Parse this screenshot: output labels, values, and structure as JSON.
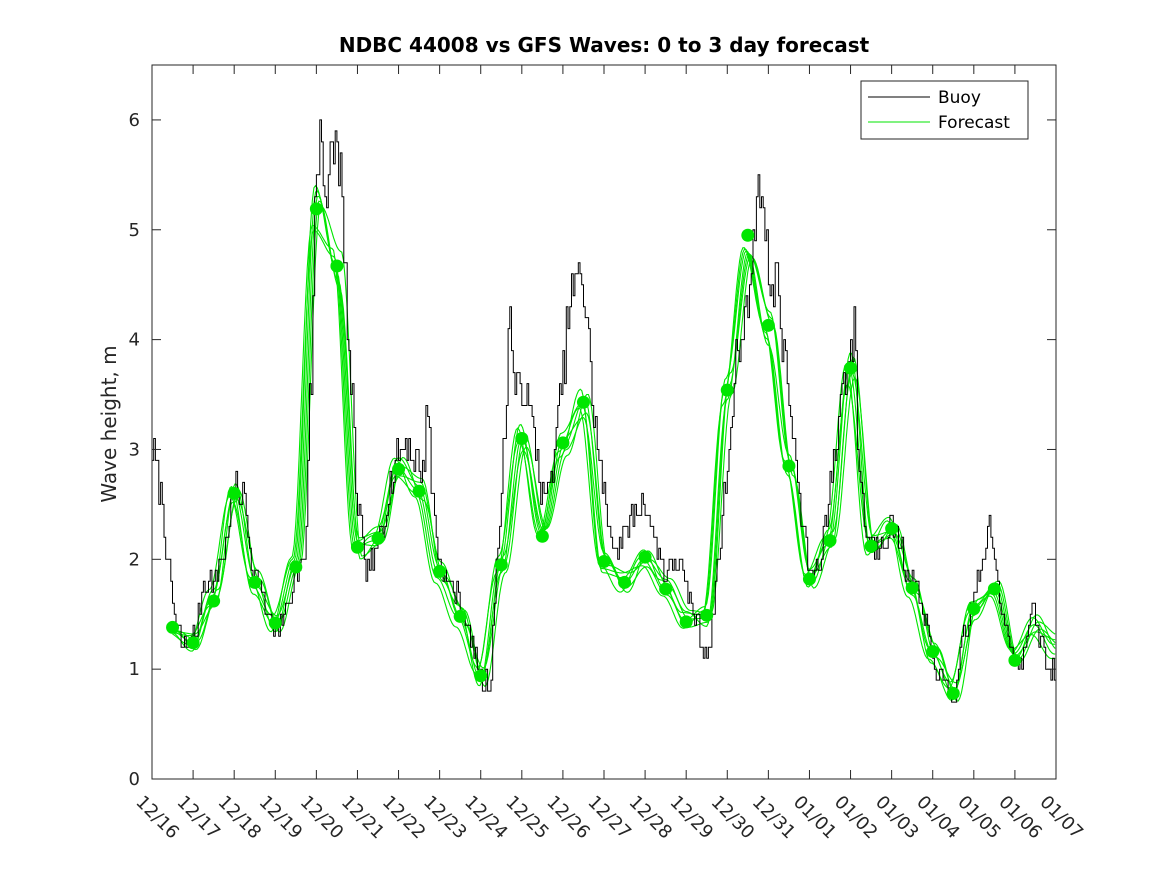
{
  "chart_data": {
    "type": "line",
    "title": "NDBC 44008 vs GFS Waves: 0 to 3 day forecast",
    "xlabel": "",
    "ylabel": "Wave height, m",
    "xlim": [
      0,
      22
    ],
    "ylim": [
      0,
      6.5
    ],
    "yticks": [
      0,
      1,
      2,
      3,
      4,
      5,
      6
    ],
    "ytick_labels": [
      "0",
      "1",
      "2",
      "3",
      "4",
      "5",
      "6"
    ],
    "xtick_labels": [
      "12/16",
      "12/17",
      "12/18",
      "12/19",
      "12/20",
      "12/21",
      "12/22",
      "12/23",
      "12/24",
      "12/25",
      "12/26",
      "12/27",
      "12/28",
      "12/29",
      "12/30",
      "12/31",
      "01/01",
      "01/02",
      "01/03",
      "01/04",
      "01/05",
      "01/06",
      "01/07"
    ],
    "legend": {
      "location": "top-right",
      "entries": [
        "Buoy",
        "Forecast"
      ]
    },
    "colors": {
      "buoy": "#000000",
      "forecast": "#00e600"
    },
    "buoy_anchors": [
      [
        0.0,
        3.0
      ],
      [
        0.2,
        2.6
      ],
      [
        0.4,
        1.9
      ],
      [
        0.6,
        1.4
      ],
      [
        0.75,
        1.2
      ],
      [
        1.0,
        1.3
      ],
      [
        1.3,
        1.8
      ],
      [
        1.5,
        1.8
      ],
      [
        1.7,
        2.0
      ],
      [
        2.0,
        2.6
      ],
      [
        2.2,
        2.6
      ],
      [
        2.5,
        1.9
      ],
      [
        2.8,
        1.5
      ],
      [
        3.0,
        1.3
      ],
      [
        3.2,
        1.5
      ],
      [
        3.5,
        1.8
      ],
      [
        3.7,
        2.0
      ],
      [
        3.85,
        3.5
      ],
      [
        4.0,
        5.5
      ],
      [
        4.1,
        6.0
      ],
      [
        4.25,
        5.2
      ],
      [
        4.35,
        5.6
      ],
      [
        4.45,
        5.8
      ],
      [
        4.55,
        5.7
      ],
      [
        4.7,
        4.5
      ],
      [
        4.85,
        3.5
      ],
      [
        5.0,
        2.5
      ],
      [
        5.2,
        1.9
      ],
      [
        5.4,
        2.0
      ],
      [
        5.6,
        2.3
      ],
      [
        5.8,
        2.7
      ],
      [
        6.0,
        3.0
      ],
      [
        6.2,
        3.1
      ],
      [
        6.4,
        2.9
      ],
      [
        6.6,
        2.8
      ],
      [
        6.7,
        3.5
      ],
      [
        6.8,
        2.6
      ],
      [
        7.0,
        2.0
      ],
      [
        7.2,
        1.8
      ],
      [
        7.4,
        1.7
      ],
      [
        7.6,
        1.5
      ],
      [
        7.8,
        1.2
      ],
      [
        8.0,
        0.9
      ],
      [
        8.2,
        0.85
      ],
      [
        8.4,
        2.0
      ],
      [
        8.55,
        3.0
      ],
      [
        8.7,
        4.2
      ],
      [
        8.85,
        3.5
      ],
      [
        9.0,
        3.6
      ],
      [
        9.2,
        3.3
      ],
      [
        9.35,
        3.0
      ],
      [
        9.5,
        2.6
      ],
      [
        9.65,
        2.6
      ],
      [
        9.8,
        3.0
      ],
      [
        10.0,
        3.7
      ],
      [
        10.15,
        4.3
      ],
      [
        10.3,
        4.5
      ],
      [
        10.45,
        4.6
      ],
      [
        10.55,
        4.3
      ],
      [
        10.75,
        3.3
      ],
      [
        10.9,
        2.8
      ],
      [
        11.1,
        2.3
      ],
      [
        11.3,
        2.1
      ],
      [
        11.5,
        2.2
      ],
      [
        11.7,
        2.4
      ],
      [
        12.0,
        2.5
      ],
      [
        12.2,
        2.2
      ],
      [
        12.5,
        1.9
      ],
      [
        12.8,
        2.0
      ],
      [
        13.0,
        1.7
      ],
      [
        13.2,
        1.5
      ],
      [
        13.4,
        1.2
      ],
      [
        13.55,
        1.2
      ],
      [
        13.75,
        1.9
      ],
      [
        14.0,
        2.8
      ],
      [
        14.2,
        3.8
      ],
      [
        14.4,
        4.1
      ],
      [
        14.6,
        4.7
      ],
      [
        14.75,
        5.6
      ],
      [
        14.85,
        5.2
      ],
      [
        15.0,
        4.6
      ],
      [
        15.2,
        4.5
      ],
      [
        15.4,
        3.8
      ],
      [
        15.6,
        3.1
      ],
      [
        15.8,
        2.4
      ],
      [
        16.0,
        1.9
      ],
      [
        16.2,
        1.9
      ],
      [
        16.4,
        2.4
      ],
      [
        16.6,
        2.9
      ],
      [
        16.8,
        3.6
      ],
      [
        17.0,
        3.9
      ],
      [
        17.1,
        4.1
      ],
      [
        17.2,
        2.8
      ],
      [
        17.4,
        2.2
      ],
      [
        17.6,
        2.1
      ],
      [
        17.8,
        2.2
      ],
      [
        18.0,
        2.3
      ],
      [
        18.2,
        2.2
      ],
      [
        18.4,
        1.8
      ],
      [
        18.6,
        1.7
      ],
      [
        18.8,
        1.4
      ],
      [
        19.0,
        1.1
      ],
      [
        19.2,
        0.9
      ],
      [
        19.4,
        0.8
      ],
      [
        19.5,
        0.75
      ],
      [
        19.8,
        1.3
      ],
      [
        20.0,
        1.7
      ],
      [
        20.2,
        1.9
      ],
      [
        20.35,
        2.3
      ],
      [
        20.5,
        2.0
      ],
      [
        20.7,
        1.5
      ],
      [
        21.0,
        1.1
      ],
      [
        21.2,
        1.1
      ],
      [
        21.4,
        1.5
      ],
      [
        21.6,
        1.3
      ],
      [
        21.8,
        1.0
      ],
      [
        22.0,
        1.0
      ]
    ],
    "forecast_anchors": [
      [
        0.5,
        1.38
      ],
      [
        1.0,
        1.24
      ],
      [
        1.5,
        1.62
      ],
      [
        2.0,
        2.6
      ],
      [
        2.5,
        1.79
      ],
      [
        3.0,
        1.42
      ],
      [
        3.5,
        1.93
      ],
      [
        4.0,
        5.19
      ],
      [
        4.5,
        4.67
      ],
      [
        5.0,
        2.11
      ],
      [
        5.5,
        2.19
      ],
      [
        6.0,
        2.82
      ],
      [
        6.5,
        2.62
      ],
      [
        7.0,
        1.89
      ],
      [
        7.5,
        1.48
      ],
      [
        8.0,
        0.94
      ],
      [
        8.5,
        1.95
      ],
      [
        9.0,
        3.1
      ],
      [
        9.5,
        2.21
      ],
      [
        10.0,
        3.06
      ],
      [
        10.5,
        3.43
      ],
      [
        11.0,
        1.98
      ],
      [
        11.5,
        1.79
      ],
      [
        12.0,
        2.02
      ],
      [
        12.5,
        1.73
      ],
      [
        13.0,
        1.43
      ],
      [
        13.5,
        1.49
      ],
      [
        14.0,
        3.54
      ],
      [
        14.5,
        4.95
      ],
      [
        15.0,
        4.13
      ],
      [
        15.5,
        2.85
      ],
      [
        16.0,
        1.82
      ],
      [
        16.5,
        2.17
      ],
      [
        17.0,
        3.74
      ],
      [
        17.5,
        2.12
      ],
      [
        18.0,
        2.28
      ],
      [
        18.5,
        1.74
      ],
      [
        19.0,
        1.16
      ],
      [
        19.5,
        0.78
      ],
      [
        20.0,
        1.55
      ],
      [
        20.5,
        1.73
      ],
      [
        21.0,
        1.08
      ],
      [
        21.5,
        1.4
      ],
      [
        22.0,
        1.2
      ]
    ],
    "forecast_markers": [
      [
        0.5,
        1.38
      ],
      [
        1.0,
        1.24
      ],
      [
        1.5,
        1.62
      ],
      [
        2.0,
        2.6
      ],
      [
        2.5,
        1.79
      ],
      [
        3.0,
        1.42
      ],
      [
        3.5,
        1.93
      ],
      [
        4.0,
        5.19
      ],
      [
        4.5,
        4.67
      ],
      [
        5.0,
        2.11
      ],
      [
        5.5,
        2.19
      ],
      [
        6.0,
        2.82
      ],
      [
        6.5,
        2.62
      ],
      [
        7.0,
        1.89
      ],
      [
        7.5,
        1.48
      ],
      [
        8.0,
        0.94
      ],
      [
        8.5,
        1.95
      ],
      [
        9.0,
        3.1
      ],
      [
        9.5,
        2.21
      ],
      [
        10.0,
        3.06
      ],
      [
        10.5,
        3.43
      ],
      [
        11.0,
        1.98
      ],
      [
        11.5,
        1.79
      ],
      [
        12.0,
        2.02
      ],
      [
        12.5,
        1.73
      ],
      [
        13.0,
        1.43
      ],
      [
        13.5,
        1.49
      ],
      [
        14.0,
        3.54
      ],
      [
        14.5,
        4.95
      ],
      [
        15.0,
        4.13
      ],
      [
        15.5,
        2.85
      ],
      [
        16.0,
        1.82
      ],
      [
        16.5,
        2.17
      ],
      [
        17.0,
        3.74
      ],
      [
        17.5,
        2.12
      ],
      [
        18.0,
        2.28
      ],
      [
        18.5,
        1.74
      ],
      [
        19.0,
        1.16
      ],
      [
        19.5,
        0.78
      ],
      [
        20.0,
        1.55
      ],
      [
        20.5,
        1.73
      ],
      [
        21.0,
        1.08
      ]
    ],
    "forecast_runs": 7
  }
}
